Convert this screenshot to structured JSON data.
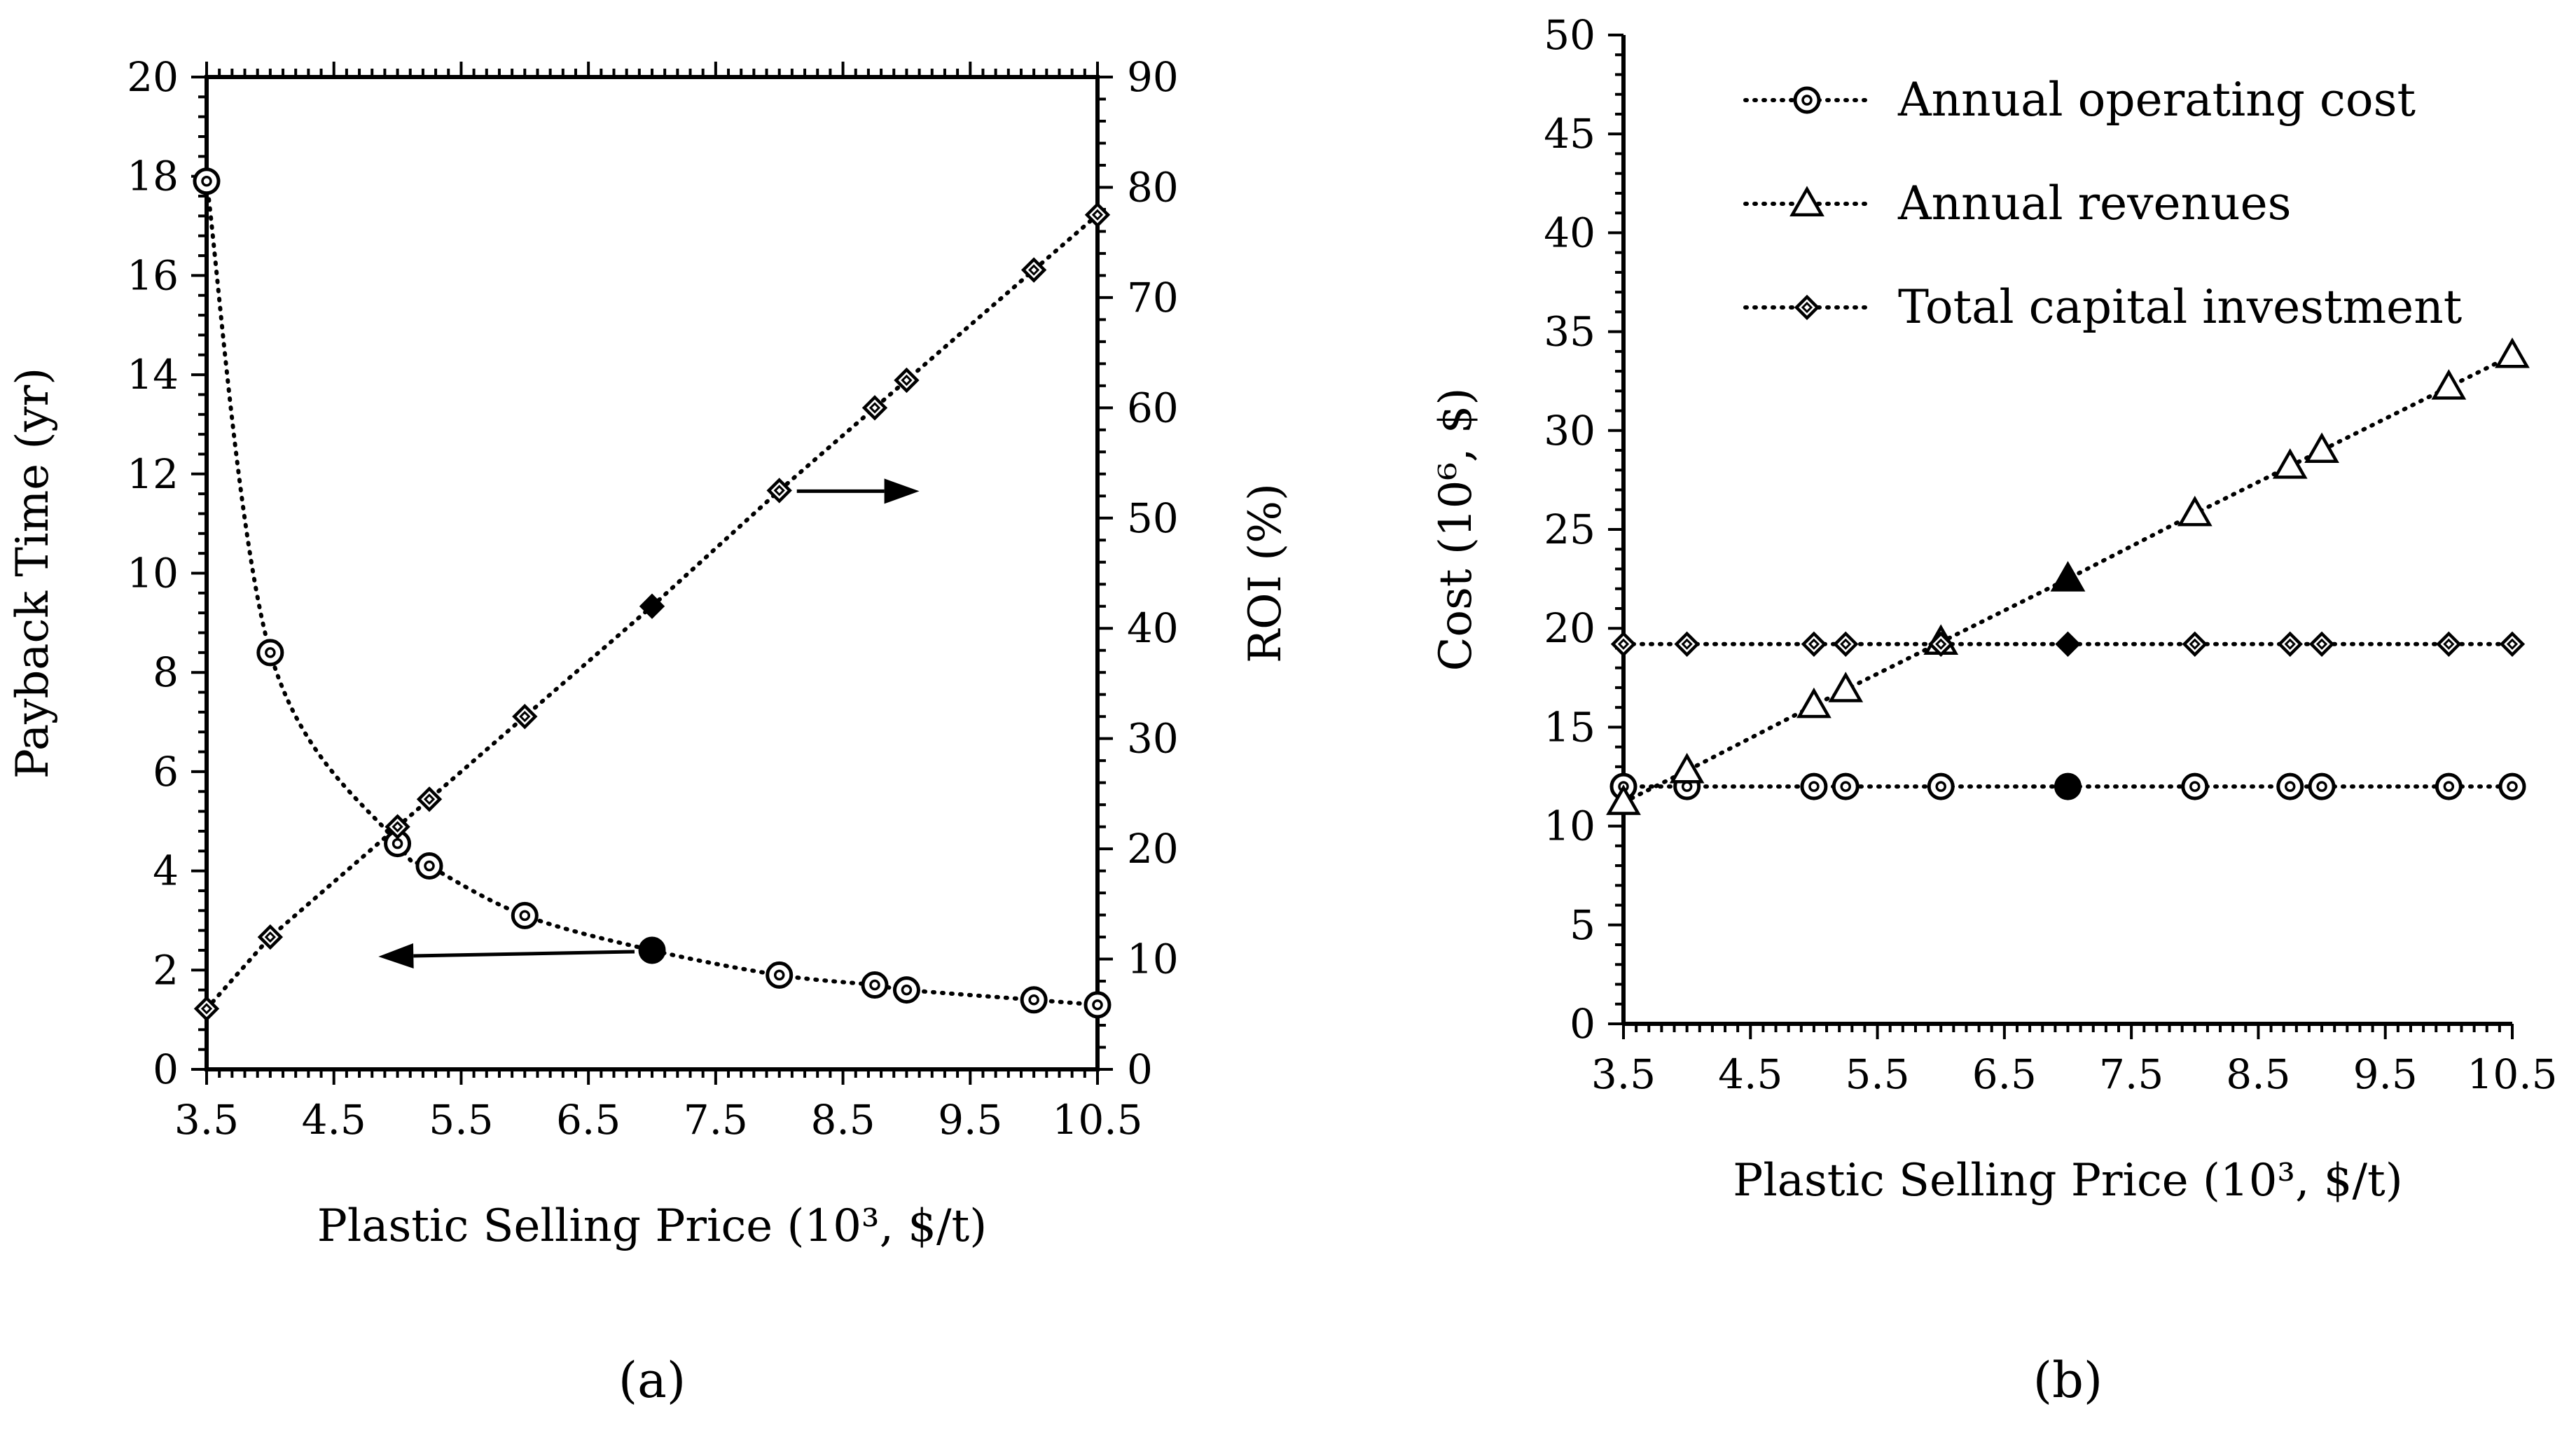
{
  "chart_data": [
    {
      "id": "a",
      "type": "line",
      "caption": "(a)",
      "xlabel": "Plastic Selling  Price (10³, $/t)",
      "ylabel": "Payback Time (yr)",
      "ylabel_right": "ROI (%)",
      "xlim": [
        3.5,
        10.5
      ],
      "ylim": [
        0,
        20
      ],
      "ylim_right": [
        0,
        90
      ],
      "xticks": [
        "3.5",
        "4.5",
        "5.5",
        "6.5",
        "7.5",
        "8.5",
        "9.5",
        "10.5"
      ],
      "yticks": [
        "0",
        "2",
        "4",
        "6",
        "8",
        "10",
        "12",
        "14",
        "16",
        "18",
        "20"
      ],
      "yticks_right": [
        "0",
        "10",
        "20",
        "30",
        "40",
        "50",
        "60",
        "70",
        "80",
        "90"
      ],
      "x": [
        3.5,
        4.0,
        5.0,
        5.25,
        6.0,
        7.0,
        8.0,
        8.75,
        9.0,
        10.0,
        10.5
      ],
      "highlight_x": 7.0,
      "series": [
        {
          "name": "Payback time",
          "axis": "left",
          "marker": "circle",
          "values": [
            17.9,
            8.4,
            4.55,
            4.1,
            3.1,
            2.4,
            1.9,
            1.7,
            1.6,
            1.4,
            1.3
          ],
          "arrow_direction": "left"
        },
        {
          "name": "ROI",
          "axis": "right",
          "marker": "diamond",
          "values": [
            5.5,
            12.0,
            22.0,
            24.5,
            32.0,
            42.0,
            52.5,
            60.0,
            62.5,
            72.5,
            77.5
          ],
          "arrow_direction": "right"
        }
      ]
    },
    {
      "id": "b",
      "type": "line",
      "caption": "(b)",
      "xlabel": "Plastic Selling  Price (10³, $/t)",
      "ylabel": "Cost (10⁶, $)",
      "xlim": [
        3.5,
        10.5
      ],
      "ylim": [
        0,
        50
      ],
      "xticks": [
        "3.5",
        "4.5",
        "5.5",
        "6.5",
        "7.5",
        "8.5",
        "9.5",
        "10.5"
      ],
      "yticks": [
        "0",
        "5",
        "10",
        "15",
        "20",
        "25",
        "30",
        "35",
        "40",
        "45",
        "50"
      ],
      "x": [
        3.5,
        4.0,
        5.0,
        5.25,
        6.0,
        7.0,
        8.0,
        8.75,
        9.0,
        10.0,
        10.5
      ],
      "highlight_x": 7.0,
      "legend_position": "top-right",
      "series": [
        {
          "name": "Annual operating cost",
          "marker": "circle",
          "values": [
            12.0,
            12.0,
            12.0,
            12.0,
            12.0,
            12.0,
            12.0,
            12.0,
            12.0,
            12.0,
            12.0
          ]
        },
        {
          "name": "Annual revenues",
          "marker": "triangle",
          "values": [
            11.2,
            12.8,
            16.1,
            16.9,
            19.3,
            22.5,
            25.8,
            28.2,
            29.0,
            32.2,
            33.8
          ]
        },
        {
          "name": "Total capital investment",
          "marker": "diamond",
          "values": [
            19.2,
            19.2,
            19.2,
            19.2,
            19.2,
            19.2,
            19.2,
            19.2,
            19.2,
            19.2,
            19.2
          ]
        }
      ]
    }
  ]
}
